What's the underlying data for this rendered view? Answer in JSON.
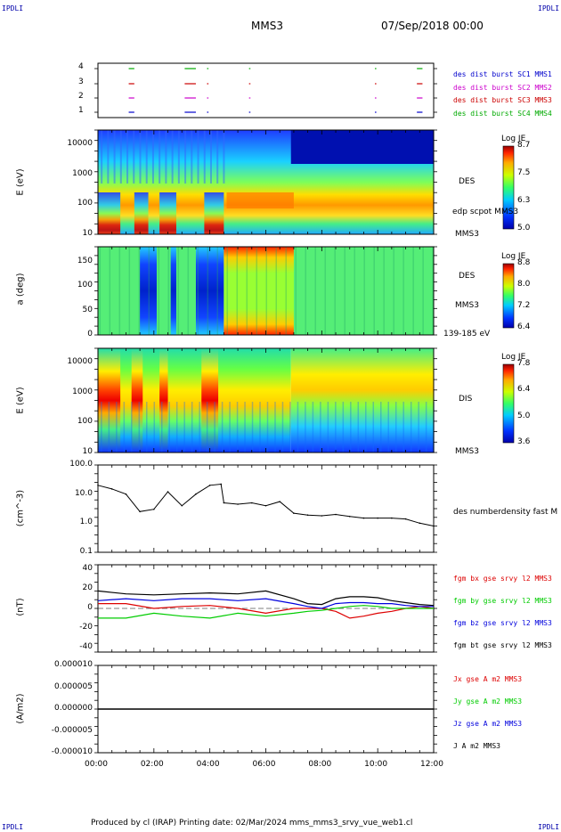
{
  "header": {
    "corner_tl": "IPDLI",
    "corner_tr": "IPDLI",
    "corner_bl": "IPDLI",
    "corner_br": "IPDLI",
    "mission": "MMS3",
    "date": "07/Sep/2018 00:00"
  },
  "footer": {
    "text": "Produced by cl (IRAP)   Printing date: 02/Mar/2024   mms_mms3_srvy_vue_web1.cl"
  },
  "colors": {
    "mms1": "#0000cc",
    "mms2": "#cc00cc",
    "mms3": "#cc0000",
    "mms4": "#00aa00",
    "bx": "#dd0000",
    "by": "#00cc00",
    "bz": "#0000dd",
    "bt": "#000000"
  },
  "x_axis": {
    "ticks": [
      "00:00",
      "02:00",
      "04:00",
      "06:00",
      "08:00",
      "10:00",
      "12:00"
    ],
    "range_hours": [
      0,
      12
    ]
  },
  "chart_data": [
    {
      "type": "scatter",
      "id": "availability",
      "yticks": [
        "4",
        "3",
        "2",
        "1"
      ],
      "legend": [
        "des dist burst SC1 MMS1",
        "des dist burst SC2 MMS2",
        "des dist burst SC3 MMS3",
        "des dist burst SC4 MMS4"
      ],
      "segments_hours": [
        [
          1.1,
          1.3
        ],
        [
          3.1,
          3.5
        ],
        [
          3.9,
          3.95
        ],
        [
          5.4,
          5.45
        ],
        [
          9.9,
          9.95
        ],
        [
          11.4,
          11.6
        ]
      ]
    },
    {
      "type": "heatmap",
      "id": "des-energy",
      "ylabel": "E (eV)",
      "yticks": [
        "10000",
        "1000",
        "100",
        "10"
      ],
      "right_labels": [
        "DES",
        "edp scpot MMS3",
        "MMS3"
      ],
      "colorbar": {
        "title": "Log JE",
        "ticks": [
          "8.7",
          "7.5",
          "6.3",
          "5.0"
        ]
      }
    },
    {
      "type": "heatmap",
      "id": "des-pitch",
      "ylabel": "a (deg)",
      "yticks": [
        "150",
        "100",
        "50",
        "0"
      ],
      "right_labels": [
        "DES",
        "MMS3",
        "139-185 eV"
      ],
      "colorbar": {
        "title": "Log JE",
        "ticks": [
          "8.8",
          "8.0",
          "7.2",
          "6.4"
        ]
      }
    },
    {
      "type": "heatmap",
      "id": "dis-energy",
      "ylabel": "E (eV)",
      "yticks": [
        "10000",
        "1000",
        "100",
        "10"
      ],
      "right_labels": [
        "DIS",
        "MMS3"
      ],
      "colorbar": {
        "title": "Log JE",
        "ticks": [
          "7.8",
          "6.4",
          "5.0",
          "3.6"
        ]
      }
    },
    {
      "type": "line",
      "id": "density",
      "ylabel": "(cm^-3)",
      "yticks": [
        "100.0",
        "10.0",
        "1.0",
        "0.1"
      ],
      "ylim": [
        0.1,
        100
      ],
      "yscale": "log",
      "legend": [
        "des numberdensity fast M"
      ],
      "x": [
        0,
        0.5,
        1,
        1.5,
        2,
        2.5,
        3,
        3.5,
        4,
        4.4,
        4.5,
        5,
        5.5,
        6,
        6.5,
        7,
        7.5,
        8,
        8.5,
        9,
        9.5,
        10,
        10.5,
        11,
        11.5,
        12
      ],
      "y": [
        20,
        15,
        10,
        2.5,
        3,
        12,
        4,
        10,
        20,
        22,
        5,
        4.5,
        5,
        4,
        5.5,
        2.2,
        1.9,
        1.8,
        2,
        1.7,
        1.5,
        1.5,
        1.5,
        1.4,
        1.0,
        0.8
      ]
    },
    {
      "type": "line",
      "id": "magnetic-field",
      "ylabel": "(nT)",
      "yticks": [
        "40",
        "20",
        "0",
        "-20",
        "-40"
      ],
      "ylim": [
        -45,
        45
      ],
      "legend": [
        "fgm bx gse srvy l2 MMS3",
        "fgm by gse srvy l2 MMS3",
        "fgm bz gse srvy l2 MMS3",
        "fgm bt gse srvy l2 MMS3"
      ],
      "x": [
        0,
        1,
        2,
        3,
        4,
        5,
        6,
        7,
        7.5,
        8,
        8.5,
        9,
        9.5,
        10,
        10.5,
        11,
        11.5,
        12
      ],
      "series": [
        {
          "name": "fgm bx gse srvy l2 MMS3",
          "values": [
            5,
            5,
            0,
            2,
            3,
            0,
            -5,
            0,
            0,
            0,
            -3,
            -10,
            -8,
            -5,
            -3,
            0,
            2,
            0
          ]
        },
        {
          "name": "fgm by gse srvy l2 MMS3",
          "values": [
            -10,
            -10,
            -5,
            -8,
            -10,
            -5,
            -8,
            -5,
            -3,
            -2,
            0,
            2,
            3,
            2,
            0,
            0,
            0,
            0
          ]
        },
        {
          "name": "fgm bz gse srvy l2 MMS3",
          "values": [
            8,
            10,
            8,
            10,
            10,
            8,
            10,
            5,
            2,
            0,
            5,
            6,
            6,
            5,
            5,
            3,
            2,
            2
          ]
        },
        {
          "name": "fgm bt gse srvy l2 MMS3",
          "values": [
            18,
            15,
            14,
            15,
            16,
            15,
            18,
            10,
            5,
            4,
            10,
            12,
            12,
            11,
            8,
            6,
            4,
            3
          ]
        }
      ]
    },
    {
      "type": "line",
      "id": "current-density",
      "ylabel": "(A/m2)",
      "yticks": [
        "0.000010",
        "0.000005",
        "0.000000",
        "-0.000005",
        "-0.000010"
      ],
      "ylim": [
        -1e-05,
        1e-05
      ],
      "legend": [
        "Jx gse A m2 MMS3",
        "Jy gse A m2 MMS3",
        "Jz gse A m2 MMS3",
        "J A m2 MMS3"
      ],
      "x": [
        0,
        12
      ],
      "series": [
        {
          "name": "J A m2 MMS3",
          "values": [
            0,
            0
          ]
        }
      ]
    }
  ]
}
